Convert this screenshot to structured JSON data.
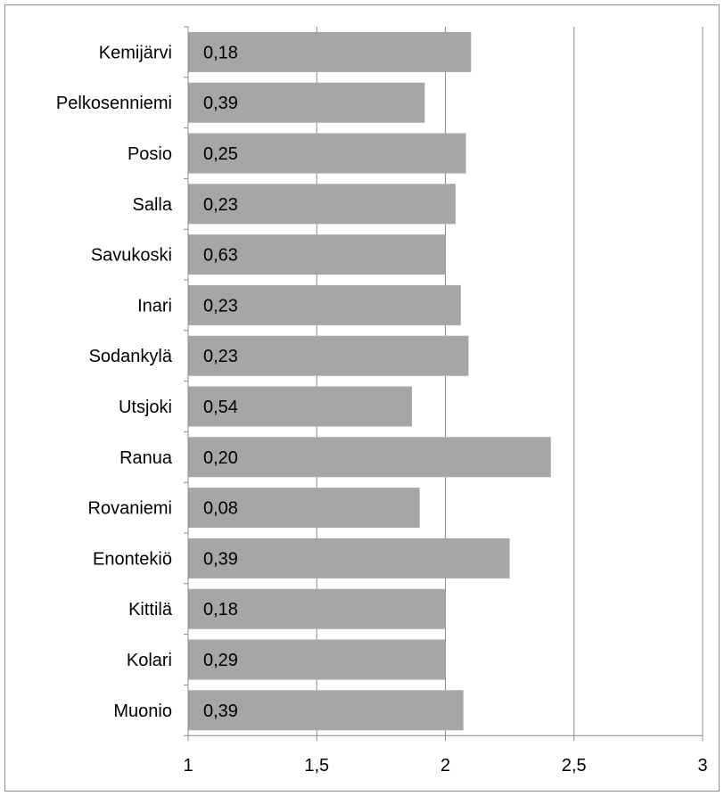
{
  "chart_data": {
    "type": "bar",
    "orientation": "horizontal",
    "categories": [
      "Kemijärvi",
      "Pelkosenniemi",
      "Posio",
      "Salla",
      "Savukoski",
      "Inari",
      "Sodankylä",
      "Utsjoki",
      "Ranua",
      "Rovaniemi",
      "Enontekiö",
      "Kittilä",
      "Kolari",
      "Muonio"
    ],
    "values": [
      2.1,
      1.92,
      2.08,
      2.04,
      2.0,
      2.06,
      2.09,
      1.87,
      2.41,
      1.9,
      2.25,
      2.0,
      2.0,
      2.07
    ],
    "data_labels": [
      "0,18",
      "0,39",
      "0,25",
      "0,23",
      "0,63",
      "0,23",
      "0,23",
      "0,54",
      "0,20",
      "0,08",
      "0,39",
      "0,18",
      "0,29",
      "0,39"
    ],
    "xlim": [
      1,
      3
    ],
    "xticks": [
      1,
      1.5,
      2,
      2.5,
      3
    ],
    "xtick_labels": [
      "1",
      "1,5",
      "2",
      "2,5",
      "3"
    ],
    "grid": "vertical",
    "bar_color": "#a6a6a6",
    "grid_color": "#8c8c8c",
    "title": "",
    "xlabel": "",
    "ylabel": ""
  }
}
